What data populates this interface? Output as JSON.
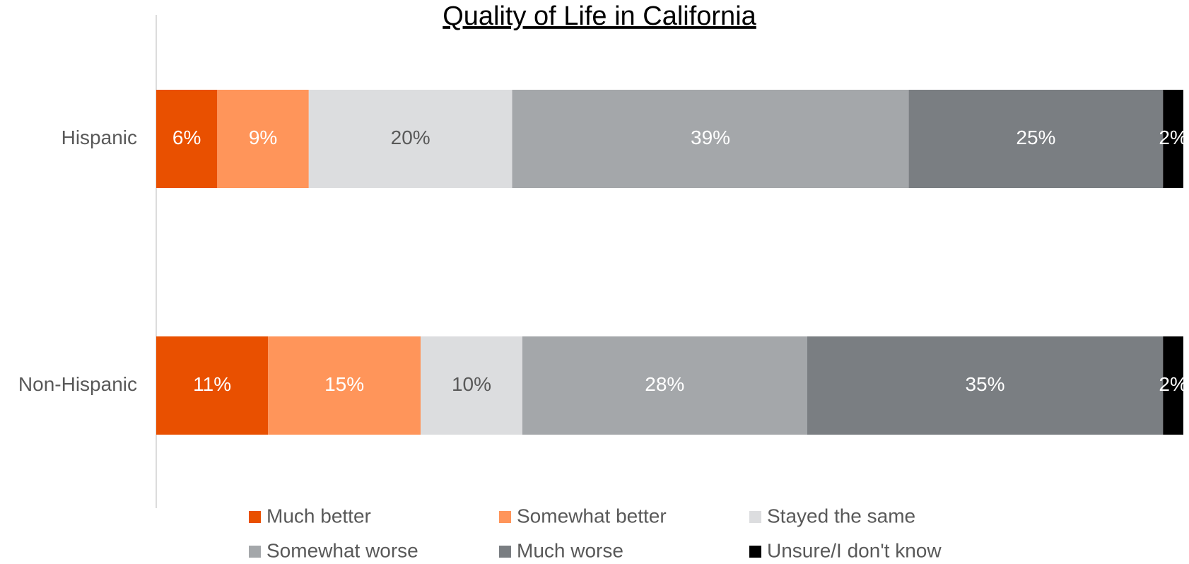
{
  "chart_data": {
    "type": "stacked-bar-horizontal",
    "title": "Quality of Life in California",
    "categories": [
      "Hispanic",
      "Non-Hispanic"
    ],
    "xlim": [
      0,
      101
    ],
    "legend": "bottom",
    "series": [
      {
        "name": "Much better",
        "color": "#e95000",
        "label_color": "#ffffff",
        "values": [
          6,
          11
        ],
        "value_labels": [
          "6%",
          "11%"
        ]
      },
      {
        "name": "Somewhat better",
        "color": "#ff955a",
        "label_color": "#ffffff",
        "values": [
          9,
          15
        ],
        "value_labels": [
          "9%",
          "15%"
        ]
      },
      {
        "name": "Stayed the same",
        "color": "#dcdddf",
        "label_color": "#595959",
        "values": [
          20,
          10
        ],
        "value_labels": [
          "20%",
          "10%"
        ]
      },
      {
        "name": "Somewhat worse",
        "color": "#a4a7aa",
        "label_color": "#ffffff",
        "values": [
          39,
          28
        ],
        "value_labels": [
          "39%",
          "28%"
        ]
      },
      {
        "name": "Much worse",
        "color": "#7a7e82",
        "label_color": "#ffffff",
        "values": [
          25,
          35
        ],
        "value_labels": [
          "25%",
          "35%"
        ]
      },
      {
        "name": "Unsure/I don't know",
        "color": "#000000",
        "label_color": "#ffffff",
        "values": [
          2,
          2
        ],
        "value_labels": [
          "2%",
          "2%"
        ]
      }
    ]
  }
}
